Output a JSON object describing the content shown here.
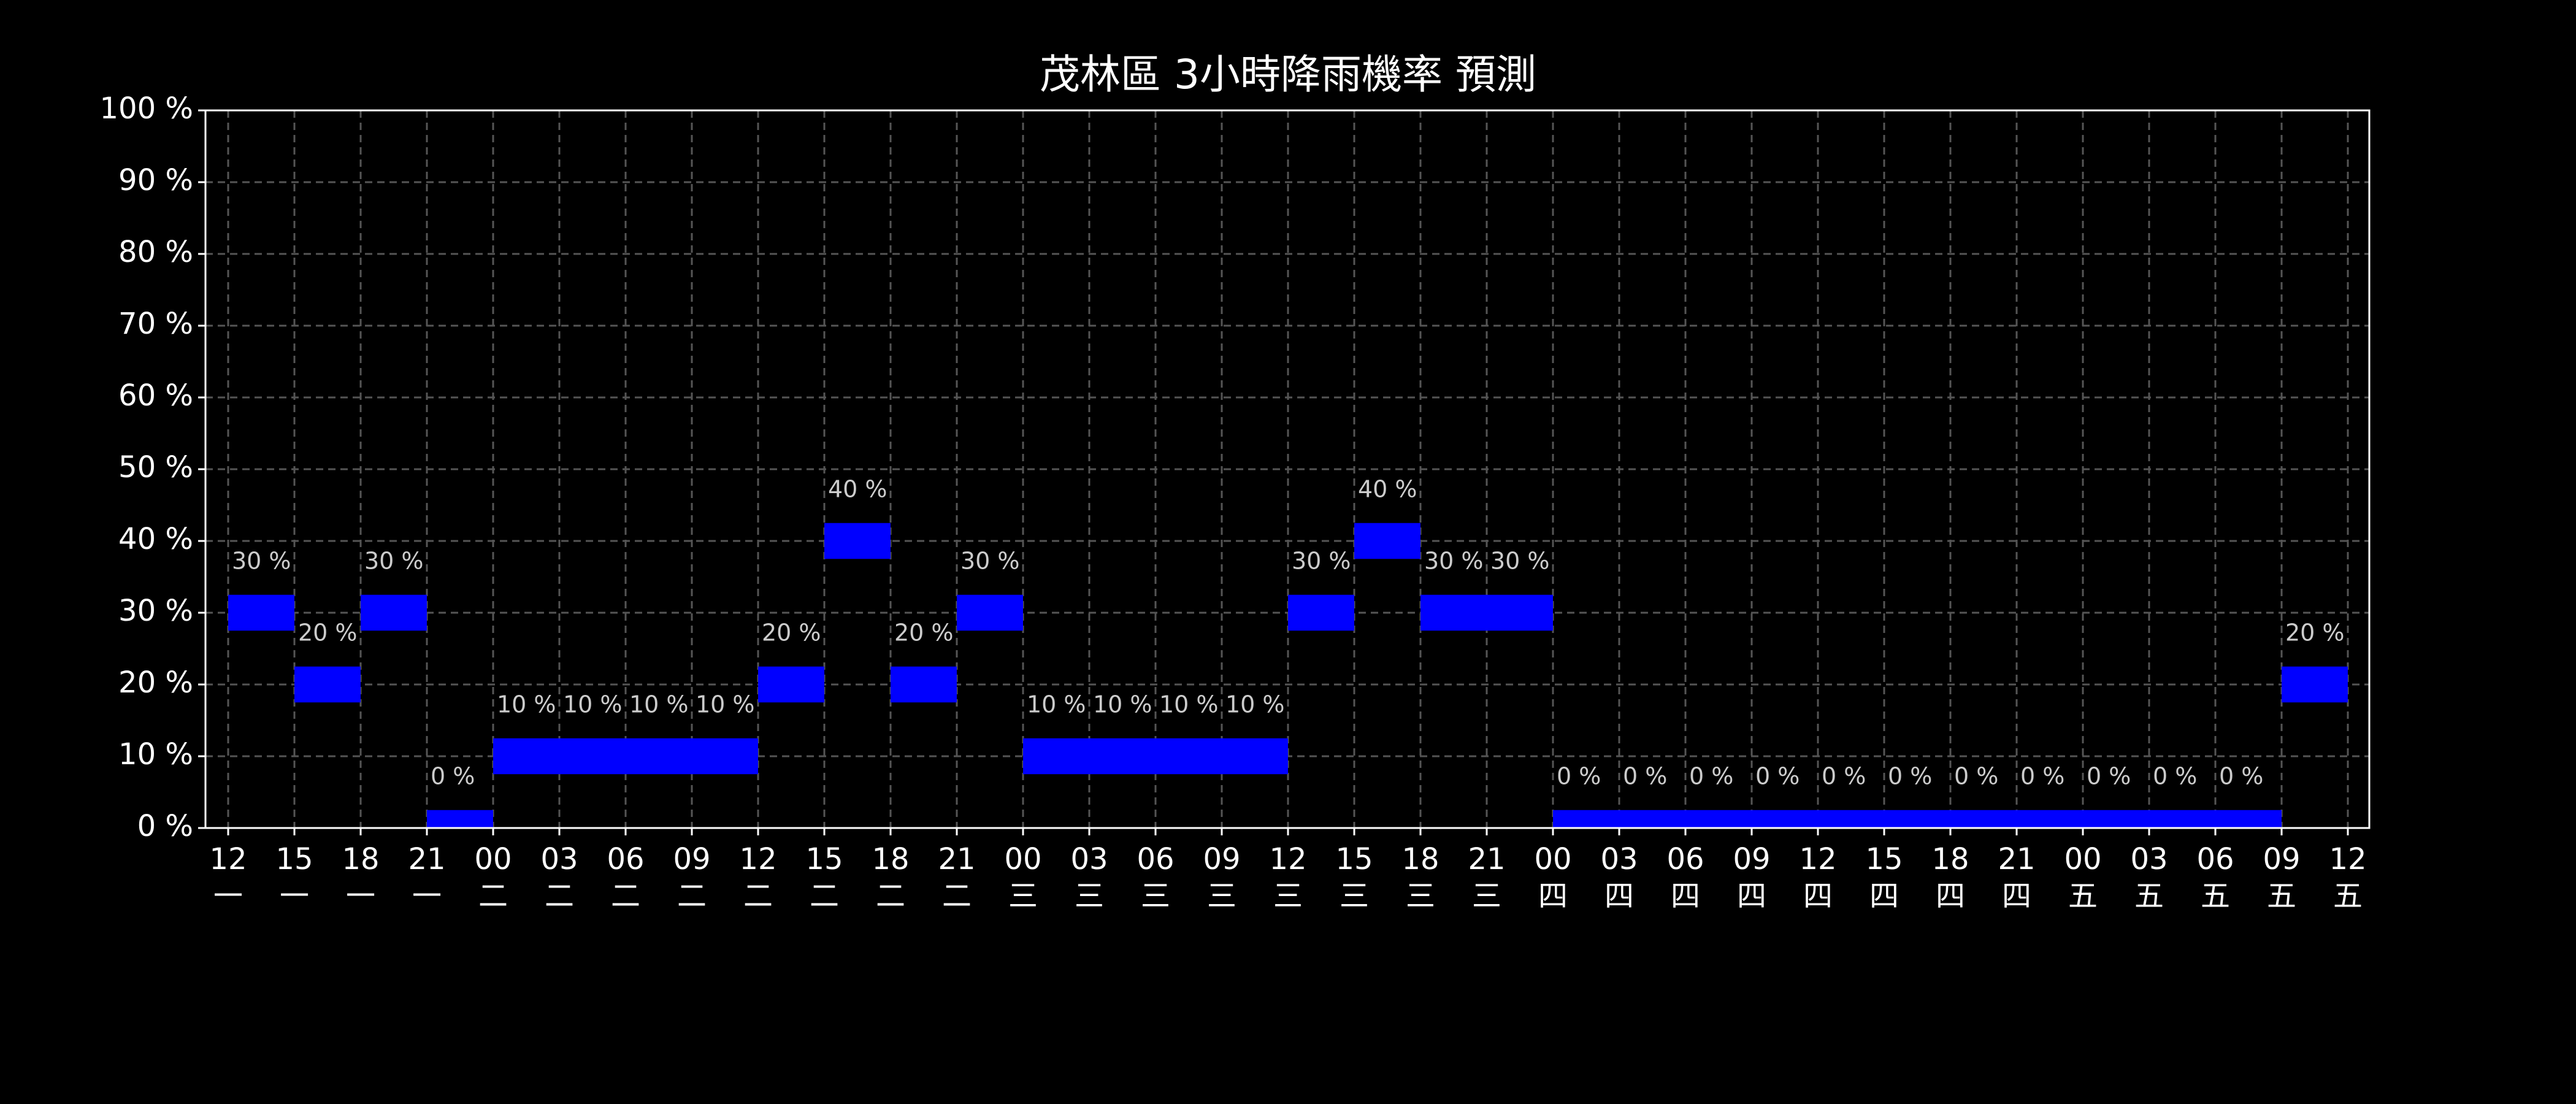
{
  "chart_data": {
    "type": "bar_step",
    "title": "茂林區 3小時降雨機率 預測",
    "x_hours": [
      "12",
      "15",
      "18",
      "21",
      "00",
      "03",
      "06",
      "09",
      "12",
      "15",
      "18",
      "21",
      "00",
      "03",
      "06",
      "09",
      "12",
      "15",
      "18",
      "21",
      "00",
      "03",
      "06",
      "09",
      "12",
      "15",
      "18",
      "21",
      "00",
      "03",
      "06",
      "09",
      "12"
    ],
    "x_days": [
      "一",
      "一",
      "一",
      "一",
      "二",
      "二",
      "二",
      "二",
      "二",
      "二",
      "二",
      "二",
      "三",
      "三",
      "三",
      "三",
      "三",
      "三",
      "三",
      "三",
      "四",
      "四",
      "四",
      "四",
      "四",
      "四",
      "四",
      "四",
      "五",
      "五",
      "五",
      "五",
      "五"
    ],
    "values": [
      30,
      20,
      30,
      0,
      10,
      10,
      10,
      10,
      20,
      40,
      20,
      30,
      10,
      10,
      10,
      10,
      30,
      40,
      30,
      30,
      0,
      0,
      0,
      0,
      0,
      0,
      0,
      0,
      0,
      0,
      0,
      20
    ],
    "value_labels": [
      "30 %",
      "20 %",
      "30 %",
      "0 %",
      "10 %",
      "10 %",
      "10 %",
      "10 %",
      "20 %",
      "40 %",
      "20 %",
      "30 %",
      "10 %",
      "10 %",
      "10 %",
      "10 %",
      "30 %",
      "40 %",
      "30 %",
      "30 %",
      "0 %",
      "0 %",
      "0 %",
      "0 %",
      "0 %",
      "0 %",
      "0 %",
      "0 %",
      "0 %",
      "0 %",
      "0 %",
      "20 %"
    ],
    "color": "#0000ff",
    "ylim": [
      0,
      100
    ],
    "yticks": [
      {
        "value": 0,
        "label": "0 %"
      },
      {
        "value": 10,
        "label": "10 %"
      },
      {
        "value": 20,
        "label": "20 %"
      },
      {
        "value": 30,
        "label": "30 %"
      },
      {
        "value": 40,
        "label": "40 %"
      },
      {
        "value": 50,
        "label": "50 %"
      },
      {
        "value": 60,
        "label": "60 %"
      },
      {
        "value": 70,
        "label": "70 %"
      },
      {
        "value": 80,
        "label": "80 %"
      },
      {
        "value": 90,
        "label": "90 %"
      },
      {
        "value": 100,
        "label": "100 %"
      }
    ],
    "grid": true
  }
}
